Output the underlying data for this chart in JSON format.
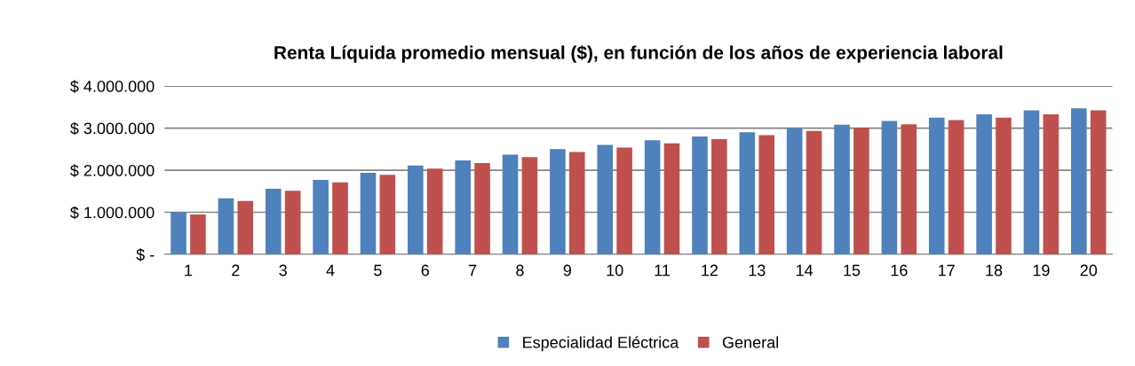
{
  "chart_data": {
    "type": "bar",
    "title": "Renta Líquida promedio mensual ($), en función de los años de experiencia laboral",
    "categories": [
      "1",
      "2",
      "3",
      "4",
      "5",
      "6",
      "7",
      "8",
      "9",
      "10",
      "11",
      "12",
      "13",
      "14",
      "15",
      "16",
      "17",
      "18",
      "19",
      "20"
    ],
    "series": [
      {
        "name": "Especialidad Eléctrica",
        "color": "#4f81bd",
        "values": [
          1000000,
          1330000,
          1560000,
          1770000,
          1940000,
          2110000,
          2230000,
          2370000,
          2500000,
          2600000,
          2710000,
          2800000,
          2900000,
          3000000,
          3080000,
          3170000,
          3250000,
          3330000,
          3420000,
          3470000
        ]
      },
      {
        "name": "General",
        "color": "#c0504d",
        "values": [
          950000,
          1270000,
          1510000,
          1710000,
          1890000,
          2040000,
          2170000,
          2310000,
          2430000,
          2540000,
          2640000,
          2740000,
          2830000,
          2930000,
          3010000,
          3090000,
          3190000,
          3250000,
          3330000,
          3420000
        ]
      }
    ],
    "ylim": [
      0,
      4000000
    ],
    "yticks": [
      {
        "value": 0,
        "label": "$ -"
      },
      {
        "value": 1000000,
        "label": "$ 1.000.000"
      },
      {
        "value": 2000000,
        "label": "$ 2.000.000"
      },
      {
        "value": 3000000,
        "label": "$ 3.000.000"
      },
      {
        "value": 4000000,
        "label": "$ 4.000.000"
      }
    ],
    "grid": "y",
    "legend": "bottom"
  }
}
